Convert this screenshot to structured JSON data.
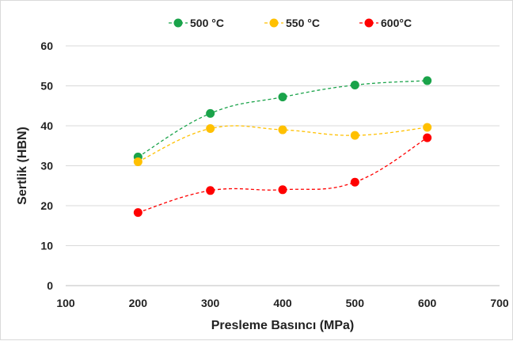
{
  "chart_data": {
    "type": "line",
    "x": [
      200,
      300,
      400,
      500,
      600
    ],
    "series": [
      {
        "name": "500 °C",
        "color": "#1aa34a",
        "values": [
          32.2,
          43.1,
          47.2,
          50.2,
          51.3
        ]
      },
      {
        "name": "550 °C",
        "color": "#ffc000",
        "values": [
          31.0,
          39.3,
          39.0,
          37.6,
          39.6
        ]
      },
      {
        "name": "600°C",
        "color": "#ff0000",
        "values": [
          18.3,
          23.8,
          24.0,
          25.9,
          37.0
        ]
      }
    ],
    "xlabel": "Presleme Basıncı (MPa)",
    "ylabel": "Sertlik (HBN)",
    "xlim": [
      100,
      700
    ],
    "ylim": [
      0,
      60
    ],
    "xticks": [
      100,
      200,
      300,
      400,
      500,
      600,
      700
    ],
    "yticks": [
      0,
      10,
      20,
      30,
      40,
      50,
      60
    ],
    "grid": "horizontal",
    "line_style": "dashed, smoothed",
    "legend_position": "top"
  }
}
